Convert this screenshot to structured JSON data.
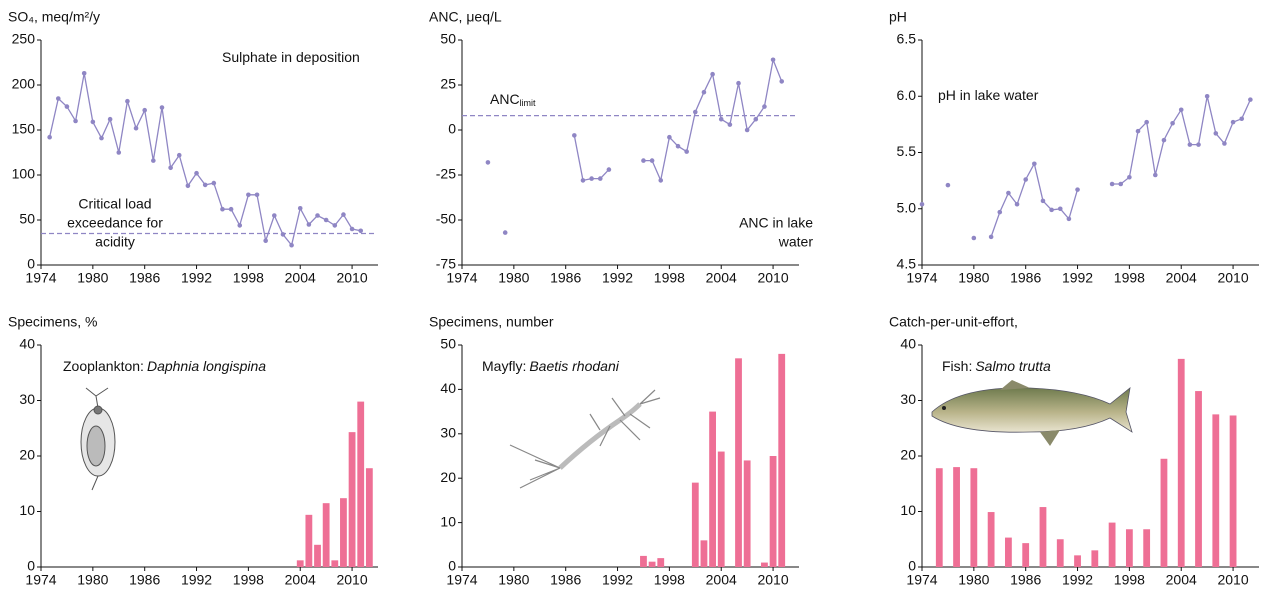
{
  "chart_data": [
    {
      "type": "line",
      "y_title": "SO₄, meq/m²/y",
      "color": "#8f86c4",
      "x": [
        1975,
        1976,
        1977,
        1978,
        1979,
        1980,
        1981,
        1982,
        1983,
        1984,
        1985,
        1986,
        1987,
        1988,
        1989,
        1990,
        1991,
        1992,
        1993,
        1994,
        1995,
        1996,
        1997,
        1998,
        1999,
        2000,
        2001,
        2002,
        2003,
        2004,
        2005,
        2006,
        2007,
        2008,
        2009,
        2010,
        2011
      ],
      "values": [
        142,
        185,
        176,
        160,
        213,
        159,
        141,
        162,
        125,
        182,
        152,
        172,
        116,
        175,
        108,
        122,
        88,
        102,
        89,
        91,
        62,
        62,
        44,
        78,
        78,
        27,
        55,
        34,
        22,
        63,
        45,
        55,
        50,
        44,
        56,
        40,
        38
      ],
      "xlim": [
        1974,
        2013
      ],
      "xticks": [
        1974,
        1980,
        1986,
        1992,
        1998,
        2004,
        2010
      ],
      "ylim": [
        0,
        250
      ],
      "yticks": [
        0,
        50,
        100,
        150,
        200,
        250
      ],
      "reference_line": 35,
      "annotations": [
        {
          "text": "Sulphate in deposition"
        },
        {
          "lines": [
            "Critical load",
            "exceedance for",
            "acidity"
          ]
        }
      ]
    },
    {
      "type": "line",
      "y_title": "ANC, μeq/L",
      "color": "#8f86c4",
      "x": [
        1977,
        1978,
        1979,
        1980,
        1981,
        1982,
        1983,
        1984,
        1985,
        1986,
        1987,
        1988,
        1989,
        1990,
        1991,
        1992,
        1993,
        1994,
        1995,
        1996,
        1997,
        1998,
        1999,
        2000,
        2001,
        2002,
        2003,
        2004,
        2005,
        2006,
        2007,
        2008,
        2009,
        2010,
        2011
      ],
      "values": [
        -18,
        null,
        -57,
        null,
        null,
        null,
        null,
        null,
        null,
        null,
        -3,
        -28,
        -27,
        -27,
        -22,
        null,
        null,
        null,
        -17,
        -17,
        -28,
        -4,
        -9,
        -12,
        10,
        21,
        31,
        6,
        3,
        26,
        0,
        6,
        13,
        39,
        27
      ],
      "xlim": [
        1974,
        2013
      ],
      "xticks": [
        1974,
        1980,
        1986,
        1992,
        1998,
        2004,
        2010
      ],
      "ylim": [
        -75,
        50
      ],
      "yticks": [
        -75,
        -50,
        -25,
        0,
        25,
        50
      ],
      "reference_line": 8,
      "annotations": [
        {
          "text": "ANC",
          "subscript": "limit"
        },
        {
          "lines": [
            "ANC in lake",
            "water"
          ]
        }
      ]
    },
    {
      "type": "line",
      "y_title": "pH",
      "color": "#8f86c4",
      "x": [
        1974,
        1975,
        1976,
        1977,
        1978,
        1979,
        1980,
        1981,
        1982,
        1983,
        1984,
        1985,
        1986,
        1987,
        1988,
        1989,
        1990,
        1991,
        1992,
        1993,
        1994,
        1995,
        1996,
        1997,
        1998,
        1999,
        2000,
        2001,
        2002,
        2003,
        2004,
        2005,
        2006,
        2007,
        2008,
        2009,
        2010,
        2011,
        2012
      ],
      "values": [
        5.04,
        null,
        null,
        5.21,
        null,
        null,
        4.74,
        null,
        4.75,
        4.97,
        5.14,
        5.04,
        5.26,
        5.4,
        5.07,
        4.99,
        5.0,
        4.91,
        5.17,
        null,
        null,
        null,
        5.22,
        5.22,
        5.28,
        5.69,
        5.77,
        5.3,
        5.61,
        5.76,
        5.88,
        5.57,
        5.57,
        6.0,
        5.67,
        5.58,
        5.77,
        5.8,
        5.97
      ],
      "xlim": [
        1974,
        2013
      ],
      "xticks": [
        1974,
        1980,
        1986,
        1992,
        1998,
        2004,
        2010
      ],
      "ylim": [
        4.5,
        6.5
      ],
      "yticks": [
        4.5,
        {
          "value": 5,
          "label": "5.0"
        },
        5.5,
        {
          "value": 6,
          "label": "6.0"
        },
        6.5
      ],
      "annotations": [
        {
          "text": "pH in lake water"
        }
      ]
    },
    {
      "type": "bar",
      "y_title": "Specimens, %",
      "color": "#ee6f95",
      "x": [
        2004,
        2005,
        2006,
        2007,
        2008,
        2009,
        2010,
        2011,
        2012
      ],
      "values": [
        1.2,
        9.4,
        4,
        11.5,
        1.2,
        12.4,
        24.3,
        29.8,
        17.8
      ],
      "xlim": [
        1974,
        2013
      ],
      "xticks": [
        1974,
        1980,
        1986,
        1992,
        1998,
        2004,
        2010
      ],
      "ylim": [
        0,
        40
      ],
      "yticks": [
        0,
        10,
        20,
        30,
        40
      ],
      "annotations": [
        {
          "text": "Zooplankton:",
          "species": "Daphnia longispina"
        }
      ]
    },
    {
      "type": "bar",
      "y_title": "Specimens, number",
      "color": "#ee6f95",
      "x": [
        1995,
        1996,
        1997,
        2001,
        2002,
        2003,
        2004,
        2006,
        2007,
        2009,
        2010,
        2011
      ],
      "values": [
        2.5,
        1.2,
        2,
        19,
        6,
        35,
        26,
        47,
        24,
        1,
        25,
        48
      ],
      "xlim": [
        1974,
        2013
      ],
      "xticks": [
        1974,
        1980,
        1986,
        1992,
        1998,
        2004,
        2010
      ],
      "ylim": [
        0,
        50
      ],
      "yticks": [
        0,
        10,
        20,
        30,
        40,
        50
      ],
      "annotations": [
        {
          "text": "Mayfly:",
          "species": "Baetis rhodani"
        }
      ]
    },
    {
      "type": "bar",
      "y_title": "Catch-per-unit-effort,",
      "color": "#ee6f95",
      "x": [
        1976,
        1978,
        1980,
        1982,
        1984,
        1986,
        1988,
        1990,
        1992,
        1994,
        1996,
        1998,
        2000,
        2002,
        2004,
        2006,
        2008,
        2010
      ],
      "values": [
        17.8,
        18,
        17.8,
        9.9,
        5.3,
        4.3,
        10.8,
        5,
        2.1,
        3,
        8,
        6.8,
        6.8,
        19.5,
        37.5,
        31.7,
        27.5,
        27.3
      ],
      "xlim": [
        1974,
        2013
      ],
      "xticks": [
        1974,
        1980,
        1986,
        1992,
        1998,
        2004,
        2010
      ],
      "ylim": [
        0,
        40
      ],
      "yticks": [
        0,
        10,
        20,
        30,
        40
      ],
      "annotations": [
        {
          "text": "Fish:",
          "species": "Salmo trutta"
        }
      ]
    }
  ]
}
